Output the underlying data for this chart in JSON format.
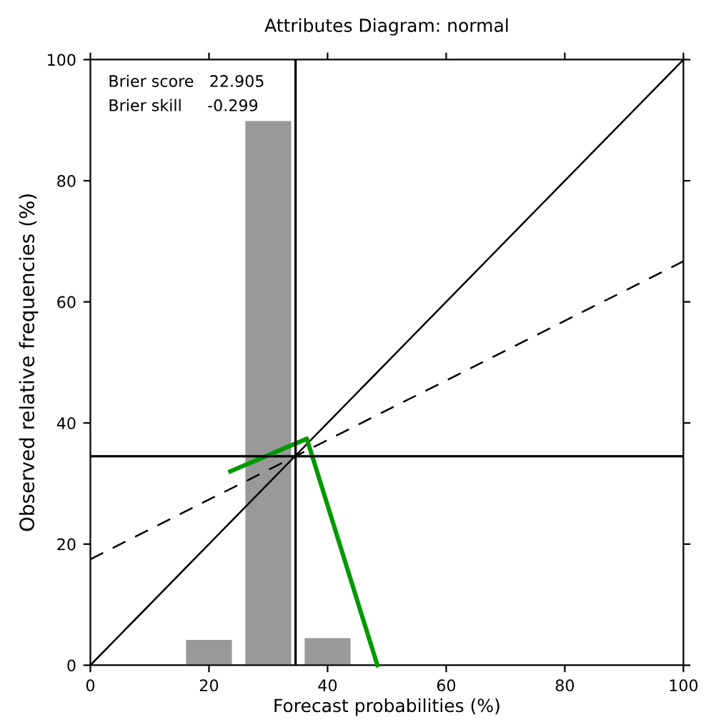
{
  "chart_data": {
    "type": "bar",
    "title": "Attributes Diagram: normal",
    "xlabel": "Forecast probabilities (%)",
    "ylabel": "Observed relative frequencies (%)",
    "xlim": [
      0,
      100
    ],
    "ylim": [
      0,
      100
    ],
    "xticks": [
      0,
      20,
      40,
      60,
      80,
      100
    ],
    "yticks": [
      0,
      20,
      40,
      60,
      80,
      100
    ],
    "grid": false,
    "legend": false,
    "annotations": [
      "Brier score   22.905",
      "Brier skill     -0.299"
    ],
    "ref_lines": [
      {
        "axis": "x",
        "value": 34.6,
        "color": "#000000"
      },
      {
        "axis": "y",
        "value": 34.5,
        "color": "#000000"
      }
    ],
    "series": [
      {
        "x": [
          20,
          30,
          40
        ],
        "values": [
          4.3,
          90,
          4.6
        ],
        "color": "#999999"
      },
      {
        "type": "line",
        "x": [
          0,
          100
        ],
        "values": [
          0,
          100
        ],
        "color": "#000000",
        "line_style": "solid"
      },
      {
        "type": "line",
        "x": [
          0,
          100
        ],
        "values": [
          17.5,
          66.7
        ],
        "color": "#000000",
        "line_style": "dashed"
      },
      {
        "type": "line",
        "x": [
          23.6,
          36.5,
          48.4
        ],
        "values": [
          32.0,
          37.4,
          0
        ],
        "color": "#009900",
        "line_style": "solid"
      }
    ]
  }
}
